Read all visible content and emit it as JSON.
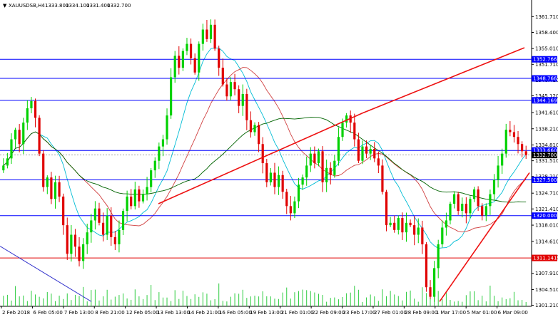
{
  "header": {
    "symbol": "XAUUSDSB,H4",
    "open": "1333.800",
    "high": "1334.100",
    "low": "1331.400",
    "close": "1332.700"
  },
  "colors": {
    "bull": "#00d100",
    "bear": "#e00000",
    "hline_blue": "#0000ff",
    "hline_red": "#e00000",
    "ma_fast": "#00bcd4",
    "ma_mid": "#d04040",
    "ma_slow": "#006400",
    "trend_red": "#ee1111",
    "trend_blue": "#3333cc",
    "volume": "#2ecc40"
  },
  "chart_data": {
    "type": "candlestick",
    "y_range": [
      1301.0,
      1364.0
    ],
    "y_ticks": [
      "1361.710",
      "1358.400",
      "1355.010",
      "1351.710",
      "1348.410",
      "1345.120",
      "1341.610",
      "1338.210",
      "1334.810",
      "1331.510",
      "1328.210",
      "1324.710",
      "1321.410",
      "1318.010",
      "1314.610",
      "1311.310",
      "1307.910",
      "1304.510",
      "1301.210"
    ],
    "x_labels": [
      "2 Feb 2018",
      "6 Feb 05:00",
      "7 Feb 13:00",
      "8 Feb 21:00",
      "12 Feb 05:00",
      "13 Feb 13:00",
      "14 Feb 21:00",
      "16 Feb 05:00",
      "19 Feb 13:00",
      "21 Feb 01:00",
      "22 Feb 09:00",
      "23 Feb 17:00",
      "27 Feb 01:00",
      "28 Feb 09:00",
      "1 Mar 17:00",
      "5 Mar 01:00",
      "6 Mar 09:00"
    ],
    "horizontal_levels": [
      {
        "price": 1352.766,
        "label": "1352.766",
        "color": "blue"
      },
      {
        "price": 1348.766,
        "label": "1348.766",
        "color": "blue"
      },
      {
        "price": 1344.169,
        "label": "1344.169",
        "color": "blue"
      },
      {
        "price": 1333.66,
        "label": "1333.660",
        "color": "blue"
      },
      {
        "price": 1327.5,
        "label": "1327.500",
        "color": "blue"
      },
      {
        "price": 1320.0,
        "label": "1320.000",
        "color": "blue"
      },
      {
        "price": 1311.141,
        "label": "1311.141",
        "color": "red"
      }
    ],
    "current_price": {
      "price": 1332.7,
      "label": "1332.700"
    },
    "closes": [
      1330.5,
      1332.0,
      1336.0,
      1338.0,
      1335.0,
      1339.5,
      1342.5,
      1344.0,
      1340.5,
      1333.0,
      1326.0,
      1328.0,
      1323.5,
      1327.0,
      1324.0,
      1318.0,
      1312.0,
      1316.0,
      1313.5,
      1310.5,
      1314.0,
      1316.5,
      1319.0,
      1321.5,
      1318.5,
      1316.0,
      1320.0,
      1315.5,
      1314.0,
      1317.0,
      1321.0,
      1324.0,
      1322.0,
      1325.5,
      1323.0,
      1324.5,
      1326.0,
      1329.5,
      1331.5,
      1334.5,
      1336.0,
      1341.0,
      1349.0,
      1353.5,
      1351.0,
      1354.5,
      1356.0,
      1353.0,
      1350.0,
      1356.0,
      1359.0,
      1357.0,
      1360.0,
      1355.0,
      1351.0,
      1347.5,
      1345.0,
      1348.0,
      1346.5,
      1343.0,
      1345.5,
      1340.0,
      1337.5,
      1339.0,
      1335.0,
      1331.0,
      1327.0,
      1329.0,
      1326.0,
      1328.5,
      1325.0,
      1322.0,
      1320.5,
      1323.0,
      1326.5,
      1328.0,
      1330.5,
      1333.0,
      1331.0,
      1333.5,
      1327.0,
      1330.0,
      1328.5,
      1331.5,
      1336.5,
      1339.5,
      1341.0,
      1339.5,
      1336.0,
      1331.5,
      1334.5,
      1333.0,
      1334.0,
      1332.0,
      1330.5,
      1325.0,
      1318.0,
      1318.5,
      1317.0,
      1319.5,
      1316.5,
      1318.5,
      1318.0,
      1316.0,
      1317.5,
      1314.0,
      1305.0,
      1303.0,
      1309.0,
      1314.0,
      1317.5,
      1319.0,
      1322.5,
      1324.5,
      1321.0,
      1322.5,
      1320.5,
      1323.5,
      1325.5,
      1322.0,
      1320.0,
      1322.0,
      1324.5,
      1327.5,
      1330.5,
      1333.0,
      1338.0,
      1337.5,
      1336.5,
      1335.0,
      1333.5,
      1332.7
    ],
    "trendlines": [
      {
        "color": "red",
        "points": [
          [
            1,
            1324.5
          ],
          [
            0.5,
            1340.5
          ],
          [
            0.95,
            1355.0
          ]
        ]
      }
    ]
  }
}
